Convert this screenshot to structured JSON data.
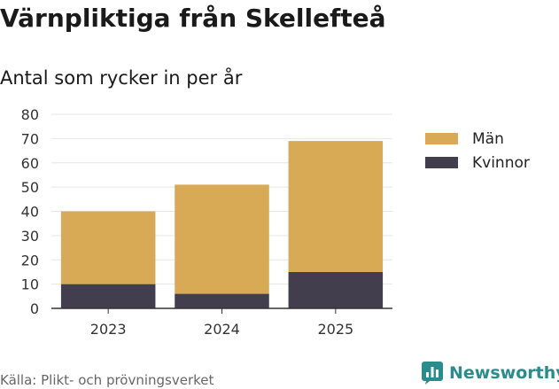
{
  "header": {
    "title": "Värnpliktiga från Skellefteå",
    "subtitle": "Antal som rycker in per år"
  },
  "chart_data": {
    "type": "bar",
    "stacked": true,
    "categories": [
      "2023",
      "2024",
      "2025"
    ],
    "series": [
      {
        "name": "Kvinnor",
        "values": [
          10,
          6,
          15
        ],
        "color": "#423e4d"
      },
      {
        "name": "Män",
        "values": [
          30,
          45,
          54
        ],
        "color": "#d9aa56"
      }
    ],
    "ylim": [
      0,
      80
    ],
    "yticks": [
      0,
      10,
      20,
      30,
      40,
      50,
      60,
      70,
      80
    ],
    "grid": true,
    "legend": "right",
    "legend_order": [
      "Män",
      "Kvinnor"
    ]
  },
  "footer": {
    "source": "Källa: Plikt- och prövningsverket",
    "brand": "Newsworthy",
    "brand_icon": "bar-chart-speech-bubble-icon",
    "brand_color": "#2a8c8c"
  }
}
